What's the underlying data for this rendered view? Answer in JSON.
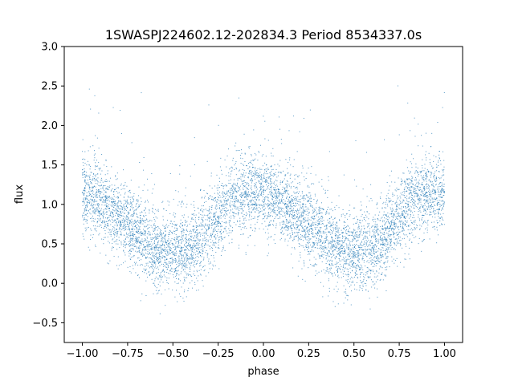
{
  "chart_data": {
    "type": "scatter",
    "title": "1SWASPJ224602.12-202834.3 Period 8534337.0s",
    "xlabel": "phase",
    "ylabel": "flux",
    "xlim": [
      -1.1,
      1.1
    ],
    "ylim": [
      -0.75,
      3.0
    ],
    "x_ticks": [
      -1.0,
      -0.75,
      -0.5,
      -0.25,
      0.0,
      0.25,
      0.5,
      0.75,
      1.0
    ],
    "x_tick_labels": [
      "−1.00",
      "−0.75",
      "−0.50",
      "−0.25",
      "0.00",
      "0.25",
      "0.50",
      "0.75",
      "1.00"
    ],
    "y_ticks": [
      -0.5,
      0.0,
      0.5,
      1.0,
      1.5,
      2.0,
      2.5,
      3.0
    ],
    "y_tick_labels": [
      "−0.5",
      "0.0",
      "0.5",
      "1.0",
      "1.5",
      "2.0",
      "2.5",
      "3.0"
    ],
    "grid": false,
    "legend": "none",
    "marker_color": "#1f77b4",
    "series": [
      {
        "x": [
          -1.0,
          -0.95,
          -0.9,
          -0.85,
          -0.8,
          -0.75,
          -0.7,
          -0.65,
          -0.6,
          -0.55,
          -0.5,
          -0.45,
          -0.4,
          -0.35,
          -0.3,
          -0.25,
          -0.2,
          -0.15,
          -0.1,
          -0.05,
          0.0,
          0.05,
          0.1,
          0.15,
          0.2,
          0.25,
          0.3,
          0.35,
          0.4,
          0.45,
          0.5,
          0.55,
          0.6,
          0.65,
          0.7,
          0.75,
          0.8,
          0.85,
          0.9,
          0.95,
          1.0
        ],
        "y": [
          1.15,
          1.1,
          1.05,
          0.95,
          0.85,
          0.75,
          0.65,
          0.55,
          0.45,
          0.42,
          0.4,
          0.42,
          0.45,
          0.55,
          0.7,
          0.85,
          1.0,
          1.1,
          1.15,
          1.15,
          1.15,
          1.1,
          1.05,
          0.95,
          0.85,
          0.75,
          0.65,
          0.55,
          0.45,
          0.42,
          0.4,
          0.42,
          0.45,
          0.55,
          0.7,
          0.85,
          1.0,
          1.1,
          1.15,
          1.15,
          1.15
        ]
      }
    ]
  }
}
